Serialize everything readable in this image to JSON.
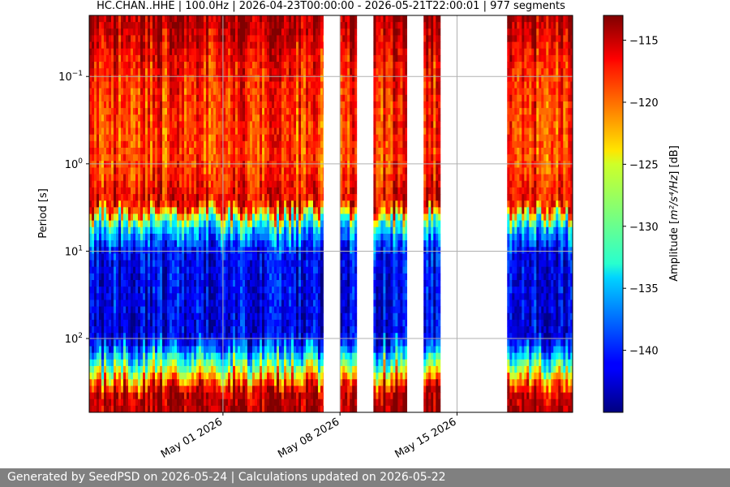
{
  "footer": {
    "text": "Generated by SeedPSD on 2026-05-24 | Calculations updated on 2026-05-22"
  },
  "colors": {
    "footer_bg": "#808080",
    "colormap": "jet",
    "grid": "#b0b0b0",
    "no_data": "#ffffff"
  },
  "chart_data": {
    "type": "heatmap",
    "title": "HC.CHAN..HHE | 100.0Hz | 2026-04-23T00:00:00 - 2026-05-21T22:00:01 | 977 segments",
    "xlabel": "",
    "ylabel": "Period [s]",
    "x_axis": {
      "type": "date",
      "range": [
        "2026-04-23T00:00:00",
        "2026-05-21T22:00:01"
      ],
      "ticks": [
        {
          "value": "2026-05-01",
          "label": "May 01 2026"
        },
        {
          "value": "2026-05-08",
          "label": "May 08 2026"
        },
        {
          "value": "2026-05-15",
          "label": "May 15 2026"
        }
      ]
    },
    "y_axis": {
      "type": "log",
      "inverted": true,
      "range_seconds": [
        0.02,
        700
      ],
      "ticks": [
        {
          "value": 0.1,
          "base": "10",
          "exp": "−1"
        },
        {
          "value": 1,
          "base": "10",
          "exp": "0"
        },
        {
          "value": 10,
          "base": "10",
          "exp": "1"
        },
        {
          "value": 100,
          "base": "10",
          "exp": "2"
        }
      ]
    },
    "colorbar": {
      "label_prefix": "Amplitude [",
      "label_units": "m²/s⁴/Hz",
      "label_suffix": "] [dB]",
      "range_db": [
        -145,
        -113
      ],
      "ticks": [
        {
          "value": -115,
          "label": "−115"
        },
        {
          "value": -120,
          "label": "−120"
        },
        {
          "value": -125,
          "label": "−125"
        },
        {
          "value": -130,
          "label": "−130"
        },
        {
          "value": -135,
          "label": "−135"
        },
        {
          "value": -140,
          "label": "−140"
        }
      ]
    },
    "data_segments": [
      {
        "start": "2026-04-23T00:00",
        "end": "2026-05-07T00:00"
      },
      {
        "start": "2026-05-08T00:00",
        "end": "2026-05-09T00:00"
      },
      {
        "start": "2026-05-10T00:00",
        "end": "2026-05-12T00:00"
      },
      {
        "start": "2026-05-13T00:00",
        "end": "2026-05-14T00:00"
      },
      {
        "start": "2026-05-18T00:00",
        "end": "2026-05-21T22:00"
      }
    ],
    "psd_profile_db": [
      {
        "period_s": 0.02,
        "db": -114
      },
      {
        "period_s": 0.1,
        "db": -118
      },
      {
        "period_s": 1,
        "db": -119
      },
      {
        "period_s": 3,
        "db": -116
      },
      {
        "period_s": 5,
        "db": -133
      },
      {
        "period_s": 10,
        "db": -141
      },
      {
        "period_s": 100,
        "db": -142
      },
      {
        "period_s": 200,
        "db": -130
      },
      {
        "period_s": 400,
        "db": -115
      },
      {
        "period_s": 700,
        "db": -114
      }
    ],
    "grid": true
  }
}
